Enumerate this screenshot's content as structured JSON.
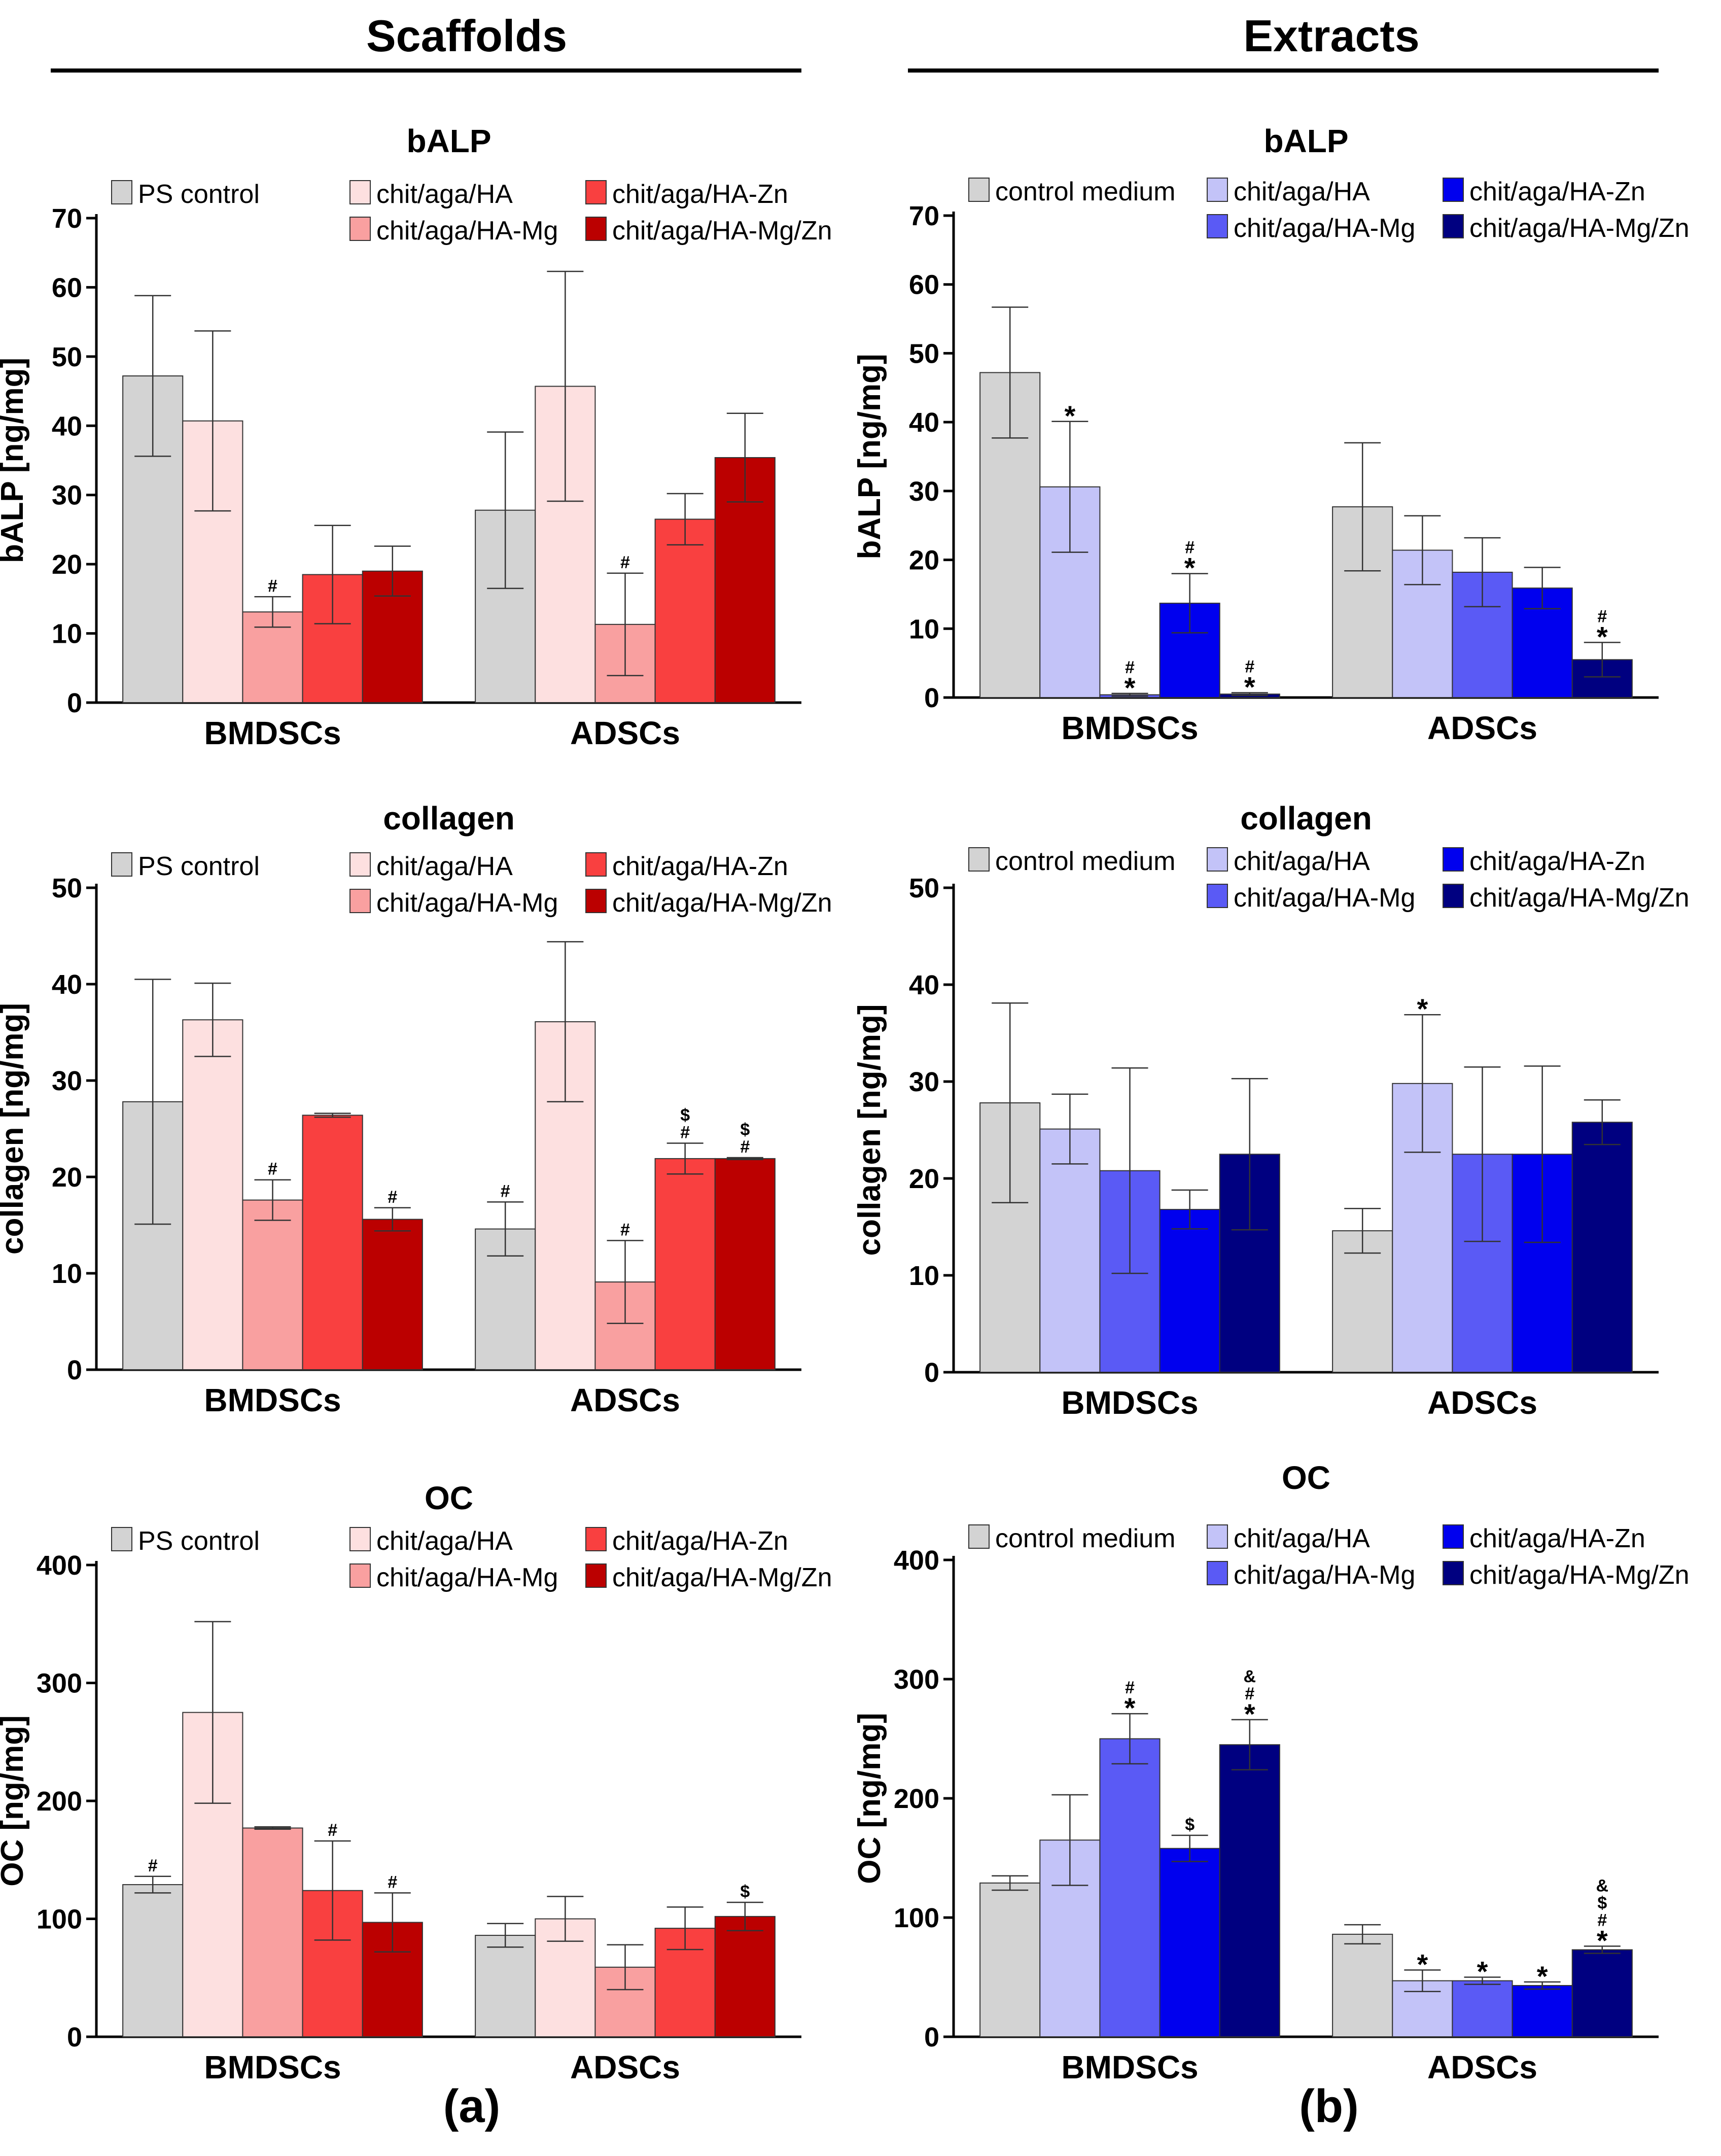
{
  "columns": [
    {
      "title": "Scaffolds",
      "panel_label": "(a)"
    },
    {
      "title": "Extracts",
      "panel_label": "(b)"
    }
  ],
  "chart_data": [
    {
      "type": "bar",
      "id": "scaf-balp",
      "title": "bALP",
      "ylabel": "bALP [ng/mg]",
      "categories": [
        "BMDSCs",
        "ADSCs"
      ],
      "ylim": [
        0,
        70
      ],
      "yticks": [
        0,
        10,
        20,
        30,
        40,
        50,
        60,
        70
      ],
      "series": [
        {
          "name": "PS control",
          "color": "#d3d3d3",
          "values": [
            47.2,
            27.8
          ],
          "errors": [
            11.6,
            11.3
          ],
          "marks": [
            "",
            ""
          ]
        },
        {
          "name": "chit/aga/HA",
          "color": "#fde0e0",
          "values": [
            40.7,
            45.7
          ],
          "errors": [
            13.0,
            16.6
          ],
          "marks": [
            "",
            ""
          ]
        },
        {
          "name": "chit/aga/HA-Mg",
          "color": "#f9a0a0",
          "values": [
            13.1,
            11.3
          ],
          "errors": [
            2.2,
            7.4
          ],
          "marks": [
            "#",
            "#"
          ]
        },
        {
          "name": "chit/aga/HA-Zn",
          "color": "#f94040",
          "values": [
            18.5,
            26.5
          ],
          "errors": [
            7.1,
            3.7
          ],
          "marks": [
            "",
            ""
          ]
        },
        {
          "name": "chit/aga/HA-Mg/Zn",
          "color": "#bb0000",
          "values": [
            19.0,
            35.4
          ],
          "errors": [
            3.6,
            6.4
          ],
          "marks": [
            "",
            ""
          ]
        }
      ]
    },
    {
      "type": "bar",
      "id": "ext-balp",
      "title": "bALP",
      "ylabel": "bALP [ng/mg]",
      "categories": [
        "BMDSCs",
        "ADSCs"
      ],
      "ylim": [
        0,
        70
      ],
      "yticks": [
        0,
        10,
        20,
        30,
        40,
        50,
        60,
        70
      ],
      "series": [
        {
          "name": "control medium",
          "color": "#d3d3d3",
          "values": [
            47.2,
            27.7
          ],
          "errors": [
            9.5,
            9.3
          ],
          "marks": [
            "",
            ""
          ]
        },
        {
          "name": "chit/aga/HA",
          "color": "#c3c3f8",
          "values": [
            30.6,
            21.4
          ],
          "errors": [
            9.5,
            5.0
          ],
          "marks": [
            "*",
            ""
          ]
        },
        {
          "name": "chit/aga/HA-Mg",
          "color": "#5a5af5",
          "values": [
            0.4,
            18.2
          ],
          "errors": [
            0.2,
            5.0
          ],
          "marks": [
            "#\n*",
            ""
          ]
        },
        {
          "name": "chit/aga/HA-Zn",
          "color": "#0000ee",
          "values": [
            13.7,
            15.9
          ],
          "errors": [
            4.3,
            3.0
          ],
          "marks": [
            "#\n*",
            ""
          ]
        },
        {
          "name": "chit/aga/HA-Mg/Zn",
          "color": "#000080",
          "values": [
            0.5,
            5.5
          ],
          "errors": [
            0.2,
            2.5
          ],
          "marks": [
            "#\n*",
            "#\n*"
          ]
        }
      ]
    },
    {
      "type": "bar",
      "id": "scaf-col",
      "title": "collagen",
      "ylabel": "collagen [ng/mg]",
      "categories": [
        "BMDSCs",
        "ADSCs"
      ],
      "ylim": [
        0,
        50
      ],
      "yticks": [
        0,
        10,
        20,
        30,
        40,
        50
      ],
      "series": [
        {
          "name": "PS control",
          "color": "#d3d3d3",
          "values": [
            27.8,
            14.6
          ],
          "errors": [
            12.7,
            2.8
          ],
          "marks": [
            "",
            "#"
          ]
        },
        {
          "name": "chit/aga/HA",
          "color": "#fde0e0",
          "values": [
            36.3,
            36.1
          ],
          "errors": [
            3.8,
            8.3
          ],
          "marks": [
            "",
            ""
          ]
        },
        {
          "name": "chit/aga/HA-Mg",
          "color": "#f9a0a0",
          "values": [
            17.6,
            9.1
          ],
          "errors": [
            2.1,
            4.3
          ],
          "marks": [
            "#",
            "#"
          ]
        },
        {
          "name": "chit/aga/HA-Zn",
          "color": "#f94040",
          "values": [
            26.4,
            21.9
          ],
          "errors": [
            0.2,
            1.6
          ],
          "marks": [
            "",
            "$\n#"
          ]
        },
        {
          "name": "chit/aga/HA-Mg/Zn",
          "color": "#bb0000",
          "values": [
            15.6,
            21.9
          ],
          "errors": [
            1.2,
            0.1
          ],
          "marks": [
            "#",
            "$\n#"
          ]
        }
      ]
    },
    {
      "type": "bar",
      "id": "ext-col",
      "title": "collagen",
      "ylabel": "collagen [ng/mg]",
      "categories": [
        "BMDSCs",
        "ADSCs"
      ],
      "ylim": [
        0,
        50
      ],
      "yticks": [
        0,
        10,
        20,
        30,
        40,
        50
      ],
      "series": [
        {
          "name": "control medium",
          "color": "#d3d3d3",
          "values": [
            27.8,
            14.6
          ],
          "errors": [
            10.3,
            2.3
          ],
          "marks": [
            "",
            ""
          ]
        },
        {
          "name": "chit/aga/HA",
          "color": "#c3c3f8",
          "values": [
            25.1,
            29.8
          ],
          "errors": [
            3.6,
            7.1
          ],
          "marks": [
            "",
            "*"
          ]
        },
        {
          "name": "chit/aga/HA-Mg",
          "color": "#5a5af5",
          "values": [
            20.8,
            22.5
          ],
          "errors": [
            10.6,
            9.0
          ],
          "marks": [
            "",
            ""
          ]
        },
        {
          "name": "chit/aga/HA-Zn",
          "color": "#0000ee",
          "values": [
            16.8,
            22.5
          ],
          "errors": [
            2.0,
            9.1
          ],
          "marks": [
            "",
            ""
          ]
        },
        {
          "name": "chit/aga/HA-Mg/Zn",
          "color": "#000080",
          "values": [
            22.5,
            25.8
          ],
          "errors": [
            7.8,
            2.3
          ],
          "marks": [
            "",
            ""
          ]
        }
      ]
    },
    {
      "type": "bar",
      "id": "scaf-oc",
      "title": "OC",
      "ylabel": "OC [ng/mg]",
      "categories": [
        "BMDSCs",
        "ADSCs"
      ],
      "ylim": [
        0,
        400
      ],
      "yticks": [
        0,
        100,
        200,
        300,
        400
      ],
      "series": [
        {
          "name": "PS control",
          "color": "#d3d3d3",
          "values": [
            129,
            86
          ],
          "errors": [
            7,
            10
          ],
          "marks": [
            "#",
            ""
          ]
        },
        {
          "name": "chit/aga/HA",
          "color": "#fde0e0",
          "values": [
            275,
            100
          ],
          "errors": [
            77,
            19
          ],
          "marks": [
            "",
            ""
          ]
        },
        {
          "name": "chit/aga/HA-Mg",
          "color": "#f9a0a0",
          "values": [
            177,
            59
          ],
          "errors": [
            1,
            19
          ],
          "marks": [
            "",
            ""
          ]
        },
        {
          "name": "chit/aga/HA-Zn",
          "color": "#f94040",
          "values": [
            124,
            92
          ],
          "errors": [
            42,
            18
          ],
          "marks": [
            "#",
            ""
          ]
        },
        {
          "name": "chit/aga/HA-Mg/Zn",
          "color": "#bb0000",
          "values": [
            97,
            102
          ],
          "errors": [
            25,
            12
          ],
          "marks": [
            "#",
            "$"
          ]
        }
      ]
    },
    {
      "type": "bar",
      "id": "ext-oc",
      "title": "OC",
      "ylabel": "OC [ng/mg]",
      "categories": [
        "BMDSCs",
        "ADSCs"
      ],
      "ylim": [
        0,
        400
      ],
      "yticks": [
        0,
        100,
        200,
        300,
        400
      ],
      "series": [
        {
          "name": "control medium",
          "color": "#d3d3d3",
          "values": [
            129,
            86
          ],
          "errors": [
            6,
            8
          ],
          "marks": [
            "",
            ""
          ]
        },
        {
          "name": "chit/aga/HA",
          "color": "#c3c3f8",
          "values": [
            165,
            47
          ],
          "errors": [
            38,
            9
          ],
          "marks": [
            "",
            "*"
          ]
        },
        {
          "name": "chit/aga/HA-Mg",
          "color": "#5a5af5",
          "values": [
            250,
            47
          ],
          "errors": [
            21,
            3
          ],
          "marks": [
            "#\n*",
            "*"
          ]
        },
        {
          "name": "chit/aga/HA-Zn",
          "color": "#0000ee",
          "values": [
            158,
            43
          ],
          "errors": [
            11,
            3
          ],
          "marks": [
            "$",
            "*"
          ]
        },
        {
          "name": "chit/aga/HA-Mg/Zn",
          "color": "#000080",
          "values": [
            245,
            73
          ],
          "errors": [
            21,
            3
          ],
          "marks": [
            "&\n#\n*",
            "&\n$\n#\n*"
          ]
        }
      ]
    }
  ]
}
